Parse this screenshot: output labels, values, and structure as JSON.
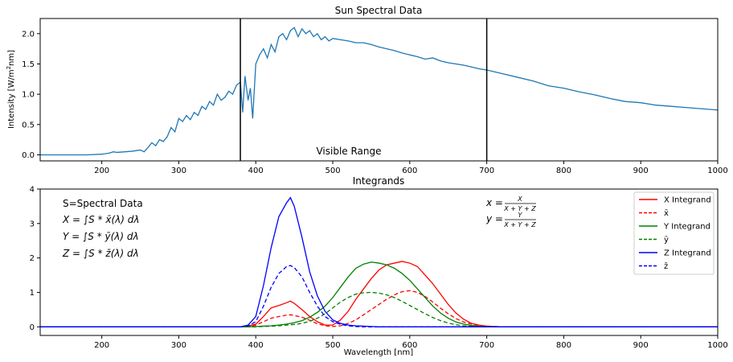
{
  "chart_data": [
    {
      "type": "line",
      "title": "Sun Spectral Data",
      "xlabel": "",
      "ylabel": "Intensity [W/m²nm]",
      "xlim": [
        120,
        1000
      ],
      "ylim": [
        -0.1,
        2.25
      ],
      "xticks": [
        200,
        300,
        400,
        500,
        600,
        700,
        800,
        900,
        1000
      ],
      "yticks": [
        0.0,
        0.5,
        1.0,
        1.5,
        2.0
      ],
      "grid": false,
      "color": "#1f77b4",
      "vlines": [
        380,
        700
      ],
      "annotation": "Visible Range",
      "series": [
        {
          "x": [
            120,
            150,
            180,
            200,
            210,
            215,
            220,
            230,
            240,
            250,
            255,
            260,
            265,
            270,
            275,
            280,
            285,
            290,
            295,
            300,
            305,
            310,
            315,
            320,
            325,
            330,
            335,
            340,
            345,
            350,
            355,
            360,
            365,
            370,
            375,
            380,
            383,
            386,
            390,
            393,
            396,
            400,
            405,
            410,
            415,
            420,
            425,
            430,
            435,
            440,
            445,
            450,
            455,
            460,
            465,
            470,
            475,
            480,
            485,
            490,
            495,
            500,
            510,
            520,
            530,
            540,
            550,
            560,
            570,
            580,
            590,
            600,
            610,
            620,
            630,
            640,
            650,
            660,
            670,
            680,
            690,
            700,
            720,
            740,
            760,
            780,
            800,
            820,
            840,
            860,
            880,
            900,
            920,
            940,
            960,
            980,
            1000
          ],
          "y": [
            0.0,
            0.0,
            0.0,
            0.01,
            0.03,
            0.05,
            0.04,
            0.05,
            0.06,
            0.08,
            0.05,
            0.12,
            0.2,
            0.15,
            0.25,
            0.22,
            0.3,
            0.45,
            0.38,
            0.6,
            0.55,
            0.65,
            0.58,
            0.7,
            0.65,
            0.8,
            0.75,
            0.88,
            0.82,
            1.0,
            0.9,
            0.95,
            1.05,
            1.0,
            1.15,
            1.2,
            0.7,
            1.3,
            0.9,
            1.1,
            0.6,
            1.5,
            1.65,
            1.75,
            1.6,
            1.82,
            1.7,
            1.95,
            2.0,
            1.9,
            2.05,
            2.1,
            1.95,
            2.08,
            2.0,
            2.05,
            1.95,
            2.0,
            1.9,
            1.95,
            1.88,
            1.92,
            1.9,
            1.88,
            1.85,
            1.85,
            1.82,
            1.78,
            1.75,
            1.72,
            1.68,
            1.65,
            1.62,
            1.58,
            1.6,
            1.55,
            1.52,
            1.5,
            1.48,
            1.45,
            1.42,
            1.4,
            1.34,
            1.28,
            1.22,
            1.14,
            1.1,
            1.04,
            0.99,
            0.93,
            0.88,
            0.86,
            0.82,
            0.8,
            0.78,
            0.76,
            0.74
          ]
        }
      ]
    },
    {
      "type": "line",
      "title": "Integrands",
      "xlabel": "Wavelength [nm]",
      "ylabel": "",
      "xlim": [
        120,
        1000
      ],
      "ylim": [
        -0.25,
        4.0
      ],
      "xticks": [
        200,
        300,
        400,
        500,
        600,
        700,
        800,
        900,
        1000
      ],
      "yticks": [
        0,
        1,
        2,
        3,
        4
      ],
      "grid": false,
      "legend_position": "top-right",
      "x": [
        380,
        390,
        400,
        410,
        420,
        430,
        440,
        445,
        450,
        460,
        470,
        480,
        490,
        500,
        510,
        520,
        530,
        540,
        550,
        560,
        570,
        580,
        590,
        600,
        610,
        620,
        630,
        640,
        650,
        660,
        670,
        680,
        690,
        700,
        720
      ],
      "series": [
        {
          "name": "X Integrand",
          "color": "#ff0000",
          "dash": false,
          "values": [
            0.0,
            0.02,
            0.08,
            0.3,
            0.55,
            0.62,
            0.7,
            0.75,
            0.68,
            0.5,
            0.3,
            0.15,
            0.05,
            0.05,
            0.2,
            0.45,
            0.8,
            1.1,
            1.4,
            1.65,
            1.8,
            1.85,
            1.9,
            1.85,
            1.75,
            1.5,
            1.25,
            0.95,
            0.65,
            0.4,
            0.22,
            0.1,
            0.05,
            0.02,
            0.0
          ]
        },
        {
          "name": "x̄",
          "color": "#ff0000",
          "dash": true,
          "values": [
            0.0,
            0.01,
            0.05,
            0.15,
            0.25,
            0.3,
            0.34,
            0.35,
            0.33,
            0.28,
            0.19,
            0.09,
            0.03,
            0.01,
            0.03,
            0.1,
            0.2,
            0.35,
            0.5,
            0.65,
            0.8,
            0.93,
            1.02,
            1.05,
            1.0,
            0.88,
            0.72,
            0.54,
            0.38,
            0.24,
            0.14,
            0.08,
            0.04,
            0.02,
            0.0
          ]
        },
        {
          "name": "Y Integrand",
          "color": "#008000",
          "dash": false,
          "values": [
            0.0,
            0.0,
            0.01,
            0.02,
            0.03,
            0.05,
            0.08,
            0.1,
            0.12,
            0.18,
            0.28,
            0.42,
            0.6,
            0.85,
            1.15,
            1.45,
            1.7,
            1.82,
            1.88,
            1.85,
            1.8,
            1.7,
            1.55,
            1.35,
            1.1,
            0.85,
            0.6,
            0.4,
            0.25,
            0.14,
            0.08,
            0.04,
            0.02,
            0.01,
            0.0
          ]
        },
        {
          "name": "ȳ",
          "color": "#008000",
          "dash": true,
          "values": [
            0.0,
            0.0,
            0.0,
            0.01,
            0.02,
            0.03,
            0.05,
            0.06,
            0.07,
            0.1,
            0.16,
            0.25,
            0.38,
            0.55,
            0.72,
            0.85,
            0.95,
            0.99,
            1.0,
            0.98,
            0.93,
            0.85,
            0.74,
            0.62,
            0.5,
            0.38,
            0.27,
            0.18,
            0.11,
            0.06,
            0.03,
            0.02,
            0.01,
            0.0,
            0.0
          ]
        },
        {
          "name": "Z Integrand",
          "color": "#0000ff",
          "dash": false,
          "values": [
            0.0,
            0.05,
            0.3,
            1.2,
            2.3,
            3.2,
            3.6,
            3.75,
            3.5,
            2.6,
            1.6,
            0.9,
            0.45,
            0.2,
            0.1,
            0.05,
            0.03,
            0.02,
            0.01,
            0.0,
            0.0,
            0.0,
            0.0,
            0.0,
            0.0,
            0.0,
            0.0,
            0.0,
            0.0,
            0.0,
            0.0,
            0.0,
            0.0,
            0.0,
            0.0
          ]
        },
        {
          "name": "z̄",
          "color": "#0000ff",
          "dash": true,
          "values": [
            0.0,
            0.03,
            0.15,
            0.6,
            1.15,
            1.55,
            1.75,
            1.78,
            1.72,
            1.45,
            1.0,
            0.6,
            0.3,
            0.15,
            0.07,
            0.03,
            0.01,
            0.0,
            0.0,
            0.0,
            0.0,
            0.0,
            0.0,
            0.0,
            0.0,
            0.0,
            0.0,
            0.0,
            0.0,
            0.0,
            0.0,
            0.0,
            0.0,
            0.0,
            0.0
          ]
        }
      ],
      "annotations": {
        "spectral_note": "S=Spectral Data",
        "X_eq": "X = ∫S * x̄(λ) dλ",
        "Y_eq": "Y = ∫S * ȳ(λ) dλ",
        "Z_eq": "Z = ∫S * z̄(λ) dλ",
        "x_eq_lhs": "x =",
        "x_eq_num": "X",
        "x_eq_den": "X + Y + Z",
        "y_eq_lhs": "y =",
        "y_eq_num": "Y",
        "y_eq_den": "X + Y + Z"
      }
    }
  ]
}
